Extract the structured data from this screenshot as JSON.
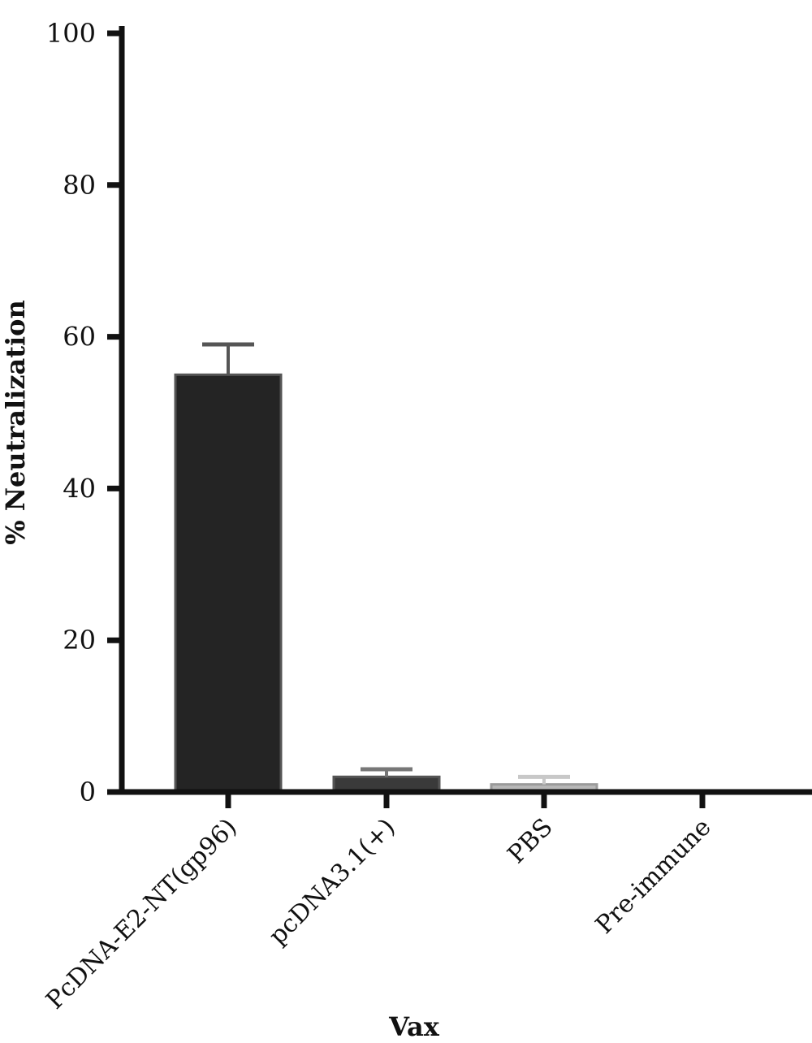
{
  "chart_data": {
    "type": "bar",
    "title": "",
    "xlabel": "Vax",
    "ylabel": "% Neutralization",
    "ylim": [
      0,
      100
    ],
    "yticks": [
      "0",
      "20",
      "40",
      "60",
      "80",
      "100"
    ],
    "categories": [
      "PcDNA-E2-NT(gp96)",
      "pcDNA3.1(+)",
      "PBS",
      "Pre-immune"
    ],
    "values": [
      55,
      2,
      1,
      0
    ],
    "errors": [
      4,
      1,
      1,
      0
    ],
    "bar_colors": [
      "#242424",
      "#3a3a3a",
      "#b8b8b8",
      "#ffffff"
    ],
    "legend": "none",
    "grid": false
  }
}
